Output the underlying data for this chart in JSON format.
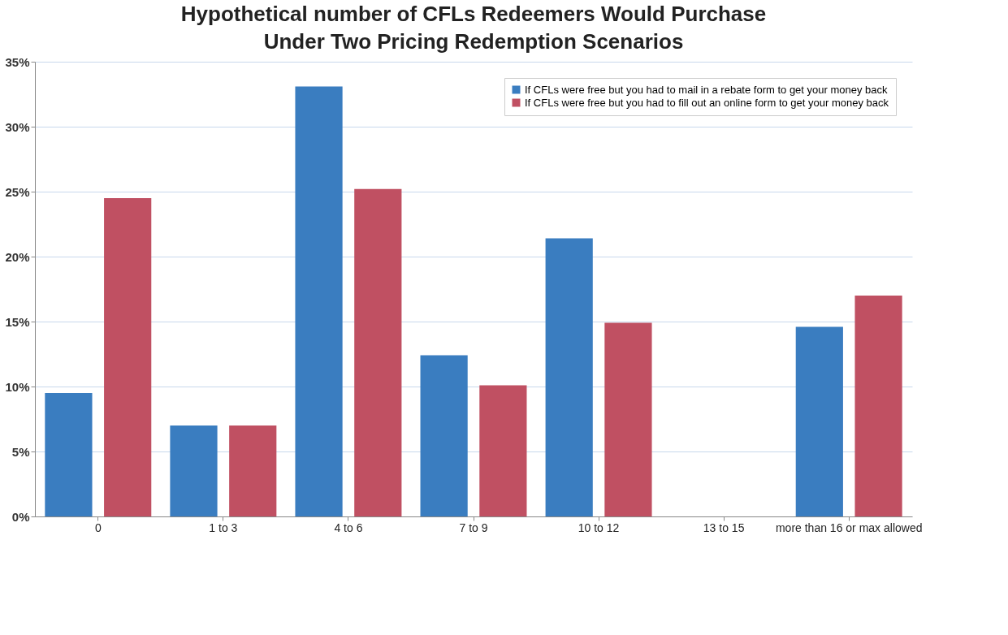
{
  "chart_data": {
    "type": "bar",
    "title": "Hypothetical number of CFLs Redeemers Would Purchase Under Two Pricing Redemption Scenarios",
    "categories": [
      "0",
      "1 to 3",
      "4 to 6",
      "7 to 9",
      "10 to 12",
      "13 to 15",
      "more than 16 or max allowed"
    ],
    "series": [
      {
        "name": "If CFLs were free but you had to mail in a rebate form to get your money back",
        "color": "#3a7dc0",
        "values": [
          9.5,
          7.0,
          33.1,
          12.4,
          21.4,
          null,
          14.6
        ]
      },
      {
        "name": "If CFLs were free but you had to fill out an online form to get your money back",
        "color": "#c05062",
        "values": [
          24.5,
          7.0,
          25.2,
          10.1,
          14.9,
          null,
          17.0
        ]
      }
    ],
    "ylim": [
      0,
      35
    ],
    "yticks": [
      {
        "value": 0,
        "label": "0%"
      },
      {
        "value": 5,
        "label": "5%"
      },
      {
        "value": 10,
        "label": "10%"
      },
      {
        "value": 15,
        "label": "15%"
      },
      {
        "value": 20,
        "label": "20%"
      },
      {
        "value": 25,
        "label": "25%"
      },
      {
        "value": 30,
        "label": "30%"
      },
      {
        "value": 35,
        "label": "35%"
      }
    ],
    "grid": "y",
    "legend": "top right"
  }
}
